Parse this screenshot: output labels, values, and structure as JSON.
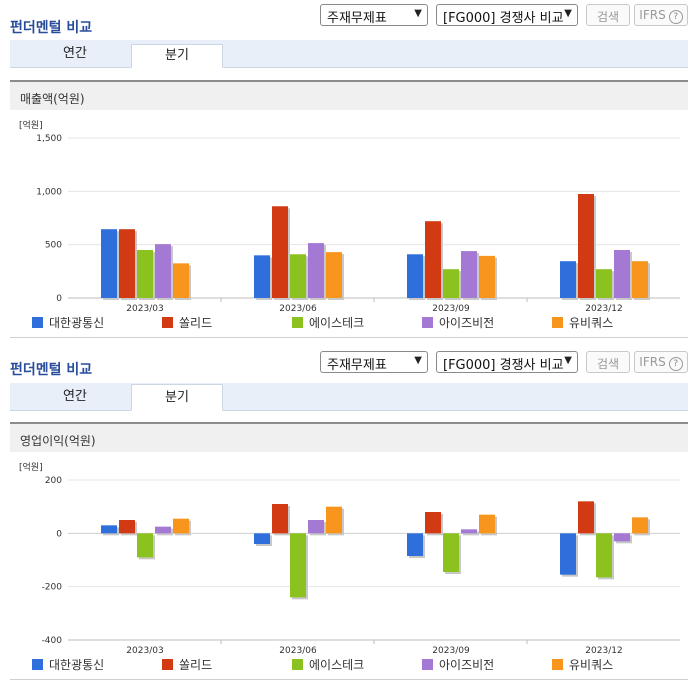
{
  "sections": [
    {
      "title": "펀더멘털 비교",
      "select1": "주재무제표",
      "select2": "[FG000] 경쟁사 비교",
      "search_label": "검색",
      "ifrs_label": "IFRS",
      "help_glyph": "?",
      "tab_annual": "연간",
      "tab_quarter": "분기",
      "metric_title": "매출액(억원)",
      "unit": "[억원]"
    },
    {
      "title": "펀더멘털 비교",
      "select1": "주재무제표",
      "select2": "[FG000] 경쟁사 비교",
      "search_label": "검색",
      "ifrs_label": "IFRS",
      "help_glyph": "?",
      "tab_annual": "연간",
      "tab_quarter": "분기",
      "metric_title": "영업이익(억원)",
      "unit": "[억원]"
    }
  ],
  "chart_data": [
    {
      "type": "bar",
      "title": "매출액(억원)",
      "ylabel": "[억원]",
      "categories": [
        "2023/03",
        "2023/06",
        "2023/09",
        "2023/12"
      ],
      "ylim": [
        0,
        1500
      ],
      "yticks": [
        0,
        500,
        1000,
        1500
      ],
      "ytick_labels": [
        "0",
        "500",
        "1,000",
        "1,500"
      ],
      "grid": true,
      "legend_position": "bottom",
      "series": [
        {
          "name": "대한광통신",
          "color": "#2f6fdc",
          "values": [
            645,
            400,
            410,
            345
          ]
        },
        {
          "name": "쏠리드",
          "color": "#d13a12",
          "values": [
            645,
            860,
            720,
            975
          ]
        },
        {
          "name": "에이스테크",
          "color": "#8cc21f",
          "values": [
            450,
            410,
            270,
            270
          ]
        },
        {
          "name": "아이즈비전",
          "color": "#a479d4",
          "values": [
            505,
            515,
            440,
            450
          ]
        },
        {
          "name": "유비쿼스",
          "color": "#f7951d",
          "values": [
            325,
            430,
            395,
            345
          ]
        }
      ]
    },
    {
      "type": "bar",
      "title": "영업이익(억원)",
      "ylabel": "[억원]",
      "categories": [
        "2023/03",
        "2023/06",
        "2023/09",
        "2023/12"
      ],
      "ylim": [
        -400,
        200
      ],
      "yticks": [
        -400,
        -200,
        0,
        200
      ],
      "ytick_labels": [
        "-400",
        "-200",
        "0",
        "200"
      ],
      "grid": true,
      "legend_position": "bottom",
      "series": [
        {
          "name": "대한광통신",
          "color": "#2f6fdc",
          "values": [
            30,
            -40,
            -85,
            -155
          ]
        },
        {
          "name": "쏠리드",
          "color": "#d13a12",
          "values": [
            50,
            110,
            80,
            120
          ]
        },
        {
          "name": "에이스테크",
          "color": "#8cc21f",
          "values": [
            -90,
            -240,
            -145,
            -165
          ]
        },
        {
          "name": "아이즈비전",
          "color": "#a479d4",
          "values": [
            25,
            50,
            15,
            -30
          ]
        },
        {
          "name": "유비쿼스",
          "color": "#f7951d",
          "values": [
            55,
            100,
            70,
            60
          ]
        }
      ]
    }
  ]
}
